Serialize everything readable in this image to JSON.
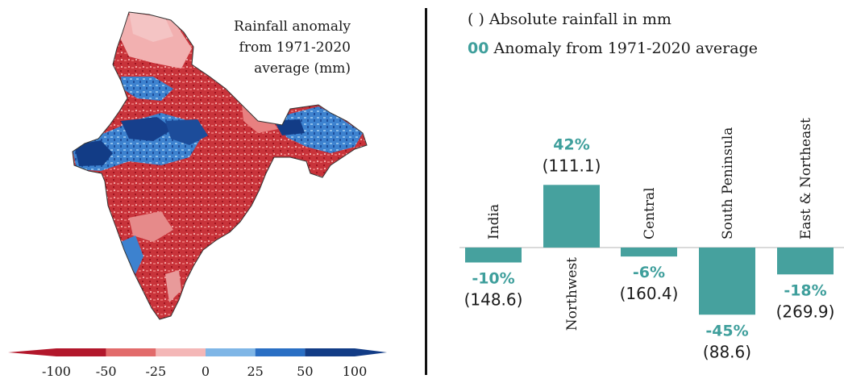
{
  "map": {
    "title_lines": [
      "Rainfall anomaly",
      "from 1971-2020",
      "average  (mm)"
    ],
    "colorbar_ticks": [
      "-100",
      "-50",
      "-25",
      "0",
      "25",
      "50",
      "100"
    ],
    "colorbar_colors": [
      "#b2172b",
      "#e26b6b",
      "#f4b7b7",
      "#b8e8a8",
      "#7fb6e6",
      "#2a6fc4",
      "#123c86"
    ]
  },
  "legend": {
    "absolute_symbol": "( )",
    "absolute_text": "Absolute rainfall in mm",
    "anomaly_symbol": "00",
    "anomaly_text": "Anomaly from 1971-2020  average"
  },
  "chart_data": {
    "type": "bar",
    "categories": [
      "India",
      "Northwest",
      "Central",
      "South Peninsula",
      "East & Northeast"
    ],
    "values": [
      -10,
      42,
      -6,
      -45,
      -18
    ],
    "value_labels": [
      "-10%",
      "42%",
      "-6%",
      "-45%",
      "-18%"
    ],
    "absolute_labels": [
      "(148.6)",
      "(111.1)",
      "(160.4)",
      "(88.6)",
      "(269.9)"
    ],
    "unit": "%",
    "bar_color": "#46a19e",
    "label_color": "#3f9f9c",
    "ylim": [
      -50,
      50
    ],
    "title": "",
    "xlabel": "",
    "ylabel": ""
  }
}
